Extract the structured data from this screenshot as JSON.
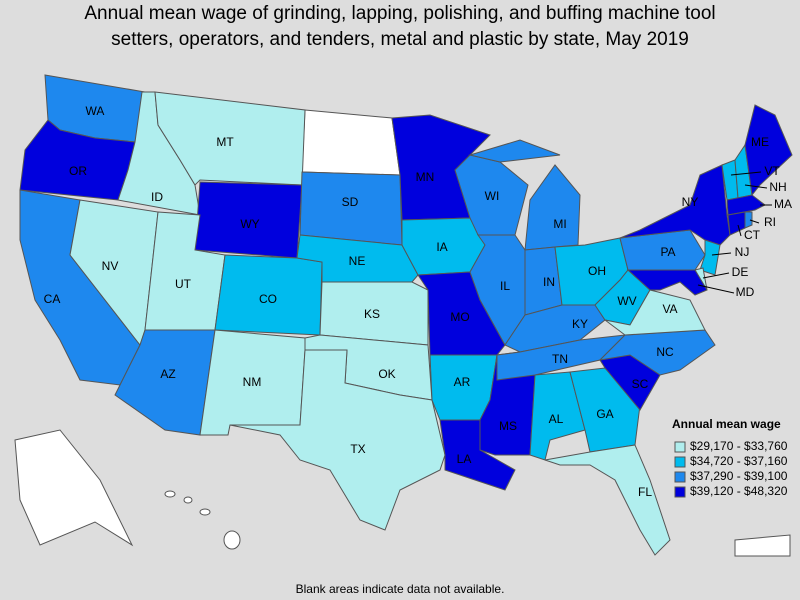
{
  "title": [
    "Annual mean wage of grinding, lapping, polishing, and buffing machine tool",
    "setters, operators, and tenders, metal and plastic by state, May 2019"
  ],
  "legend": {
    "title": "Annual mean wage",
    "bins": [
      {
        "label": "$29,170 - $33,760",
        "color": "#b0eeee"
      },
      {
        "label": "$34,720 - $37,160",
        "color": "#00bbee"
      },
      {
        "label": "$37,290 - $39,100",
        "color": "#1e88ee"
      },
      {
        "label": "$39,120 - $48,320",
        "color": "#0000dd"
      }
    ]
  },
  "states": [
    {
      "label": "WA",
      "bin": 2
    },
    {
      "label": "OR",
      "bin": 3
    },
    {
      "label": "CA",
      "bin": 2
    },
    {
      "label": "ID",
      "bin": 0
    },
    {
      "label": "NV",
      "bin": 0
    },
    {
      "label": "MT",
      "bin": 0
    },
    {
      "label": "WY",
      "bin": 3
    },
    {
      "label": "UT",
      "bin": 0
    },
    {
      "label": "CO",
      "bin": 1
    },
    {
      "label": "AZ",
      "bin": 2
    },
    {
      "label": "NM",
      "bin": 0
    },
    {
      "label": "SD",
      "bin": 2
    },
    {
      "label": "NE",
      "bin": 1
    },
    {
      "label": "KS",
      "bin": 0
    },
    {
      "label": "OK",
      "bin": 0
    },
    {
      "label": "TX",
      "bin": 0
    },
    {
      "label": "MN",
      "bin": 3
    },
    {
      "label": "IA",
      "bin": 1
    },
    {
      "label": "MO",
      "bin": 3
    },
    {
      "label": "AR",
      "bin": 1
    },
    {
      "label": "LA",
      "bin": 3
    },
    {
      "label": "WI",
      "bin": 2
    },
    {
      "label": "IL",
      "bin": 2
    },
    {
      "label": "MS",
      "bin": 3
    },
    {
      "label": "MI",
      "bin": 2
    },
    {
      "label": "IN",
      "bin": 2
    },
    {
      "label": "KY",
      "bin": 2
    },
    {
      "label": "TN",
      "bin": 2
    },
    {
      "label": "AL",
      "bin": 1
    },
    {
      "label": "OH",
      "bin": 1
    },
    {
      "label": "WV",
      "bin": 1
    },
    {
      "label": "GA",
      "bin": 1
    },
    {
      "label": "FL",
      "bin": 0
    },
    {
      "label": "SC",
      "bin": 3
    },
    {
      "label": "NC",
      "bin": 2
    },
    {
      "label": "VA",
      "bin": 0
    },
    {
      "label": "PA",
      "bin": 2
    },
    {
      "label": "NY",
      "bin": 3
    },
    {
      "label": "VT",
      "bin": 1
    },
    {
      "label": "NH",
      "bin": 1
    },
    {
      "label": "ME",
      "bin": 3
    },
    {
      "label": "MA",
      "bin": 3
    },
    {
      "label": "RI",
      "bin": 2
    },
    {
      "label": "CT",
      "bin": 3
    },
    {
      "label": "NJ",
      "bin": 1
    },
    {
      "label": "DE",
      "bin": 0
    },
    {
      "label": "MD",
      "bin": 3
    }
  ],
  "footnote": "Blank areas indicate data not available."
}
